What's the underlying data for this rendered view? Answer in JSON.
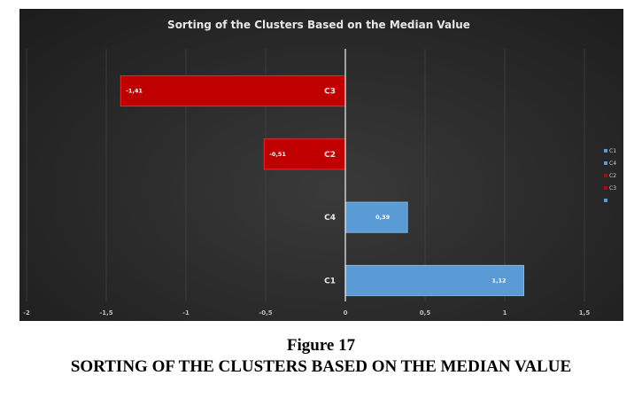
{
  "chart_data": {
    "type": "bar",
    "orientation": "horizontal",
    "title": "Sorting of the Clusters Based on the Median Value",
    "categories": [
      "C3",
      "C2",
      "C4",
      "C1"
    ],
    "values": [
      -1.41,
      -0.51,
      0.39,
      1.12
    ],
    "data_labels": [
      "-1,41",
      "-0,51",
      "0,39",
      "1,12"
    ],
    "xlim": [
      -2,
      1.5
    ],
    "x_ticks": [
      -2,
      -1.5,
      -1,
      -0.5,
      0,
      0.5,
      1,
      1.5
    ],
    "x_tick_labels": [
      "-2",
      "-1,5",
      "-1",
      "-0,5",
      "0",
      "0,5",
      "1",
      "1,5"
    ],
    "grid": true,
    "legend_position": "right",
    "legend": [
      {
        "label": "C1",
        "color": "#5b9bd5"
      },
      {
        "label": "C4",
        "color": "#5b9bd5"
      },
      {
        "label": "C2",
        "color": "#c00000"
      },
      {
        "label": "C3",
        "color": "#c00000"
      },
      {
        "label": "",
        "color": "#5b9bd5"
      }
    ],
    "colors": {
      "negative": "#c00000",
      "positive": "#5b9bd5",
      "background": "#2b2b2b"
    }
  },
  "caption": {
    "figure_number": "Figure 17",
    "figure_title": "SORTING OF THE CLUSTERS BASED ON THE MEDIAN VALUE"
  }
}
